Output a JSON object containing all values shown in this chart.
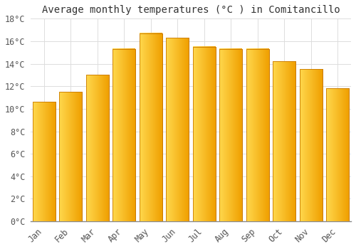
{
  "title": "Average monthly temperatures (°C ) in Comitancillo",
  "months": [
    "Jan",
    "Feb",
    "Mar",
    "Apr",
    "May",
    "Jun",
    "Jul",
    "Aug",
    "Sep",
    "Oct",
    "Nov",
    "Dec"
  ],
  "values": [
    10.6,
    11.5,
    13.0,
    15.3,
    16.7,
    16.3,
    15.5,
    15.3,
    15.3,
    14.2,
    13.5,
    11.8
  ],
  "bar_color_left": "#FFD84D",
  "bar_color_right": "#F5A000",
  "background_color": "#FFFFFF",
  "grid_color": "#DDDDDD",
  "ylim": [
    0,
    18
  ],
  "yticks": [
    0,
    2,
    4,
    6,
    8,
    10,
    12,
    14,
    16,
    18
  ],
  "title_fontsize": 10,
  "tick_fontsize": 8.5
}
